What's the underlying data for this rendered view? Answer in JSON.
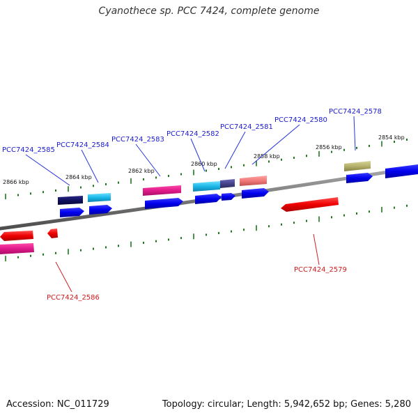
{
  "title": "Cyanothece sp. PCC 7424, complete genome",
  "footer": {
    "accession": "Accession: NC_011729",
    "stats": "Topology: circular; Length: 5,942,652 bp; Genes: 5,280"
  },
  "colors": {
    "backbone": "#808080",
    "tick": "#1a7a1a",
    "label_forward": "#1a1acc",
    "label_reverse": "#cc1a1a"
  },
  "kbp_labels": [
    "2866 kbp",
    "2864 kbp",
    "2862 kbp",
    "2860 kbp",
    "2858 kbp",
    "2856 kbp",
    "2854 kbp"
  ],
  "gene_labels": [
    {
      "id": "PCC7424_2585",
      "strand": "forward"
    },
    {
      "id": "PCC7424_2584",
      "strand": "forward"
    },
    {
      "id": "PCC7424_2583",
      "strand": "forward"
    },
    {
      "id": "PCC7424_2582",
      "strand": "forward"
    },
    {
      "id": "PCC7424_2581",
      "strand": "forward"
    },
    {
      "id": "PCC7424_2580",
      "strand": "forward"
    },
    {
      "id": "PCC7424_2578",
      "strand": "forward"
    },
    {
      "id": "PCC7424_2579",
      "strand": "reverse"
    },
    {
      "id": "PCC7424_2586",
      "strand": "reverse"
    }
  ]
}
